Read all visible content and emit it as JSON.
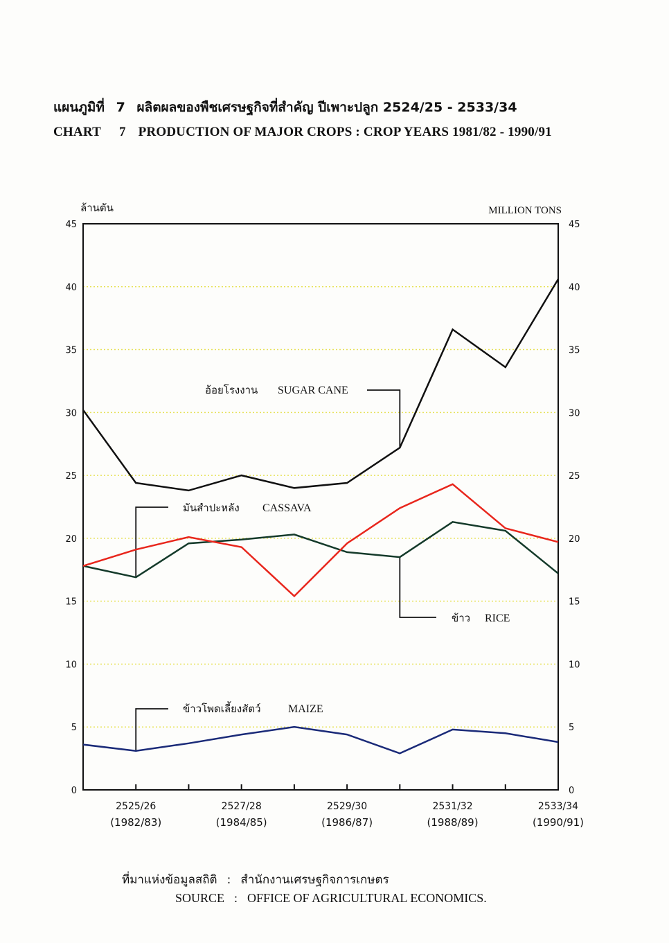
{
  "header": {
    "title_th_prefix": "แผนภูมิที่",
    "chart_number": "7",
    "title_th": "ผลิตผลของพืชเศรษฐกิจที่สำคัญ ปีเพาะปลูก 2524/25 - 2533/34",
    "title_en_prefix": "CHART",
    "title_en": "PRODUCTION OF MAJOR CROPS : CROP YEARS 1981/82 - 1990/91"
  },
  "source": {
    "label_th": "ที่มาแห่งข้อมูลสถิติ",
    "value_th": "สำนักงานเศรษฐกิจการเกษตร",
    "label_en": "SOURCE",
    "value_en": "OFFICE OF AGRICULTURAL ECONOMICS.",
    "separator": ":"
  },
  "chart_data": {
    "type": "line",
    "ylabel_th": "ล้านตัน",
    "ylabel_en": "MILLION TONS",
    "ylim": [
      0,
      45
    ],
    "yticks": [
      0,
      5,
      10,
      15,
      20,
      25,
      30,
      35,
      40,
      45
    ],
    "grid": "horizontal dotted",
    "x_labels": [
      {
        "index": 1,
        "year": "2525/26",
        "sub": "(1982/83)"
      },
      {
        "index": 3,
        "year": "2527/28",
        "sub": "(1984/85)"
      },
      {
        "index": 5,
        "year": "2529/30",
        "sub": "(1986/87)"
      },
      {
        "index": 7,
        "year": "2531/32",
        "sub": "(1988/89)"
      },
      {
        "index": 9,
        "year": "2533/34",
        "sub": "(1990/91)"
      }
    ],
    "series": [
      {
        "key": "sugar",
        "name_th": "อ้อยโรงงาน",
        "name": "SUGAR CANE",
        "color": "#111111",
        "values": [
          30.2,
          24.4,
          23.8,
          25.0,
          24.0,
          24.4,
          27.2,
          36.6,
          33.6,
          40.6
        ]
      },
      {
        "key": "cassava",
        "name_th": "มันสำปะหลัง",
        "name": "CASSAVA",
        "color": "#143a2a",
        "values": [
          17.8,
          16.9,
          19.6,
          19.9,
          20.3,
          18.9,
          18.5,
          21.3,
          20.6,
          17.2
        ]
      },
      {
        "key": "rice",
        "name_th": "ข้าว",
        "name": "RICE",
        "color": "#e8261c",
        "values": [
          17.8,
          19.1,
          20.1,
          19.3,
          15.4,
          19.6,
          22.4,
          24.3,
          20.8,
          19.7
        ]
      },
      {
        "key": "maize",
        "name_th": "ข้าวโพดเลี้ยงสัตว์",
        "name": "MAIZE",
        "color": "#1a2a78",
        "values": [
          3.6,
          3.1,
          3.7,
          4.4,
          5.0,
          4.4,
          2.9,
          4.8,
          4.5,
          3.8
        ]
      }
    ]
  }
}
